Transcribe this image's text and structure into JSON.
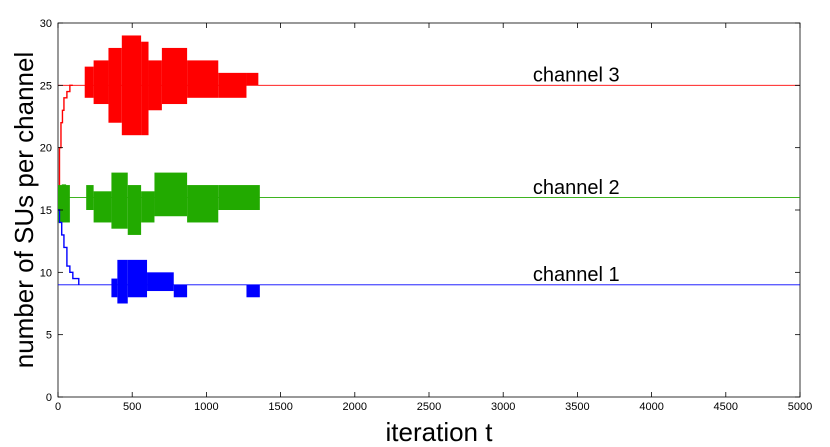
{
  "chart_data": {
    "type": "line",
    "title": "",
    "xlabel": "iteration t",
    "ylabel": "number of SUs per channel",
    "xlim": [
      0,
      5000
    ],
    "ylim": [
      0,
      30
    ],
    "xticks": [
      0,
      500,
      1000,
      1500,
      2000,
      2500,
      3000,
      3500,
      4000,
      4500,
      5000
    ],
    "yticks": [
      0,
      5,
      10,
      15,
      20,
      25,
      30
    ],
    "grid": false,
    "series": [
      {
        "name": "channel 3",
        "color": "#ff0000",
        "steady_value": 25,
        "initial_x": [
          0,
          10,
          20,
          30,
          40,
          60,
          80,
          100
        ],
        "initial_y": [
          15,
          20,
          22,
          23,
          24,
          24.5,
          25,
          25
        ],
        "fluctuation": [
          {
            "x0": 180,
            "x1": 240,
            "y0": 24,
            "y1": 26.5
          },
          {
            "x0": 240,
            "x1": 340,
            "y0": 23.5,
            "y1": 27
          },
          {
            "x0": 340,
            "x1": 430,
            "y0": 22,
            "y1": 28
          },
          {
            "x0": 430,
            "x1": 560,
            "y0": 21,
            "y1": 29
          },
          {
            "x0": 560,
            "x1": 610,
            "y0": 21,
            "y1": 28.5
          },
          {
            "x0": 610,
            "x1": 700,
            "y0": 23,
            "y1": 27
          },
          {
            "x0": 700,
            "x1": 870,
            "y0": 23.5,
            "y1": 28
          },
          {
            "x0": 870,
            "x1": 1080,
            "y0": 24,
            "y1": 27
          },
          {
            "x0": 1080,
            "x1": 1270,
            "y0": 24,
            "y1": 26
          },
          {
            "x0": 1270,
            "x1": 1350,
            "y0": 25,
            "y1": 26
          }
        ],
        "label_x": 3200,
        "label_y": 25.3
      },
      {
        "name": "channel 2",
        "color": "#22aa00",
        "steady_value": 16,
        "initial_x": [
          0,
          15,
          30,
          50,
          70
        ],
        "initial_y": [
          15,
          16,
          17,
          16,
          16
        ],
        "fluctuation": [
          {
            "x0": 0,
            "x1": 80,
            "y0": 14,
            "y1": 17
          },
          {
            "x0": 190,
            "x1": 240,
            "y0": 15,
            "y1": 17
          },
          {
            "x0": 240,
            "x1": 360,
            "y0": 14,
            "y1": 16.5
          },
          {
            "x0": 360,
            "x1": 470,
            "y0": 13.5,
            "y1": 18
          },
          {
            "x0": 470,
            "x1": 560,
            "y0": 13,
            "y1": 17
          },
          {
            "x0": 560,
            "x1": 650,
            "y0": 14,
            "y1": 16.5
          },
          {
            "x0": 650,
            "x1": 870,
            "y0": 14.5,
            "y1": 18
          },
          {
            "x0": 870,
            "x1": 1080,
            "y0": 14,
            "y1": 17
          },
          {
            "x0": 1080,
            "x1": 1360,
            "y0": 15,
            "y1": 17
          }
        ],
        "label_x": 3200,
        "label_y": 16.3
      },
      {
        "name": "channel 1",
        "color": "#0000ff",
        "steady_value": 9,
        "initial_x": [
          0,
          10,
          25,
          40,
          60,
          80,
          100,
          140
        ],
        "initial_y": [
          15,
          14,
          13,
          12,
          10.5,
          10,
          9.5,
          9
        ],
        "fluctuation": [
          {
            "x0": 360,
            "x1": 400,
            "y0": 8,
            "y1": 9.5
          },
          {
            "x0": 400,
            "x1": 470,
            "y0": 7.5,
            "y1": 11
          },
          {
            "x0": 470,
            "x1": 600,
            "y0": 8,
            "y1": 11
          },
          {
            "x0": 600,
            "x1": 780,
            "y0": 8.5,
            "y1": 10
          },
          {
            "x0": 780,
            "x1": 870,
            "y0": 8,
            "y1": 9
          },
          {
            "x0": 1270,
            "x1": 1360,
            "y0": 8,
            "y1": 9
          }
        ],
        "label_x": 3200,
        "label_y": 9.3
      }
    ]
  }
}
